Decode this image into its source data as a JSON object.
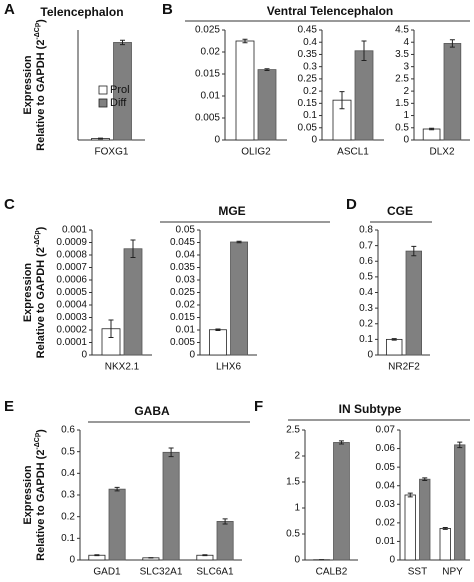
{
  "panels": [
    {
      "letter": "A",
      "title": "Telencephalon"
    },
    {
      "letter": "B",
      "title": "Ventral Telencephalon"
    },
    {
      "letter": "C",
      "title": "MGE"
    },
    {
      "letter": "D",
      "title": "CGE"
    },
    {
      "letter": "E",
      "title": "GABA"
    },
    {
      "letter": "F",
      "title": "IN Subtype"
    }
  ],
  "chart_data": [
    {
      "type": "bar",
      "categories": [
        "FOXG1"
      ],
      "ylim": [
        0,
        0.15
      ],
      "legend": true,
      "ylabel": {
        "line1": "Expression",
        "line2": "Relative to GAPDH (2",
        "sup": "-ΔCp",
        "close": ")"
      },
      "series": [
        {
          "name": "Prol",
          "color": "#ffffff",
          "values": [
            0.002
          ],
          "errors": [
            0.0005
          ]
        },
        {
          "name": "Diff",
          "color": "#808080",
          "values": [
            0.133
          ],
          "errors": [
            0.003
          ]
        }
      ]
    },
    {
      "type": "bar",
      "categories": [
        "OLIG2"
      ],
      "ylim": [
        0,
        0.025
      ],
      "yticks": [
        0,
        0.005,
        0.01,
        0.015,
        0.02,
        0.025
      ],
      "series": [
        {
          "color": "#ffffff",
          "values": [
            0.0225
          ],
          "errors": [
            0.0004
          ]
        },
        {
          "color": "#808080",
          "values": [
            0.016
          ],
          "errors": [
            0.0002
          ]
        }
      ]
    },
    {
      "type": "bar",
      "categories": [
        "ASCL1"
      ],
      "ylim": [
        0,
        0.45
      ],
      "yticks": [
        0,
        0.05,
        0.1,
        0.15,
        0.2,
        0.25,
        0.3,
        0.35,
        0.4,
        0.45
      ],
      "series": [
        {
          "color": "#ffffff",
          "values": [
            0.163
          ],
          "errors": [
            0.035
          ]
        },
        {
          "color": "#808080",
          "values": [
            0.365
          ],
          "errors": [
            0.04
          ]
        }
      ]
    },
    {
      "type": "bar",
      "categories": [
        "DLX2"
      ],
      "ylim": [
        0,
        4.5
      ],
      "yticks": [
        0,
        0.5,
        1,
        1.5,
        2,
        2.5,
        3,
        3.5,
        4,
        4.5
      ],
      "series": [
        {
          "color": "#ffffff",
          "values": [
            0.45
          ],
          "errors": [
            0.03
          ]
        },
        {
          "color": "#808080",
          "values": [
            3.95
          ],
          "errors": [
            0.15
          ]
        }
      ]
    },
    {
      "type": "bar",
      "categories": [
        "NKX2.1"
      ],
      "ylim": [
        0,
        0.001
      ],
      "yticks": [
        0,
        0.0001,
        0.0002,
        0.0003,
        0.0004,
        0.0005,
        0.0006,
        0.0007,
        0.0008,
        0.0009,
        0.001
      ],
      "ylabel": {
        "line1": "Expression",
        "line2": "Relative to GAPDH (2",
        "sup": "-ΔCp",
        "close": ")"
      },
      "series": [
        {
          "color": "#ffffff",
          "values": [
            0.00021
          ],
          "errors": [
            7e-05
          ]
        },
        {
          "color": "#808080",
          "values": [
            0.00085
          ],
          "errors": [
            7e-05
          ]
        }
      ]
    },
    {
      "type": "bar",
      "categories": [
        "LHX6"
      ],
      "ylim": [
        0,
        0.05
      ],
      "yticks": [
        0,
        0.005,
        0.01,
        0.015,
        0.02,
        0.025,
        0.03,
        0.035,
        0.04,
        0.045,
        0.05
      ],
      "series": [
        {
          "color": "#ffffff",
          "values": [
            0.0101
          ],
          "errors": [
            0.0003
          ]
        },
        {
          "color": "#808080",
          "values": [
            0.0452
          ],
          "errors": [
            0.0003
          ]
        }
      ]
    },
    {
      "type": "bar",
      "categories": [
        "NR2F2"
      ],
      "ylim": [
        0,
        0.8
      ],
      "yticks": [
        0,
        0.1,
        0.2,
        0.3,
        0.4,
        0.5,
        0.6,
        0.7,
        0.8
      ],
      "series": [
        {
          "color": "#ffffff",
          "values": [
            0.1
          ],
          "errors": [
            0.005
          ]
        },
        {
          "color": "#808080",
          "values": [
            0.665
          ],
          "errors": [
            0.03
          ]
        }
      ]
    },
    {
      "type": "bar",
      "categories": [
        "GAD1",
        "SLC32A1",
        "SLC6A1"
      ],
      "ylim": [
        0,
        0.6
      ],
      "yticks": [
        0,
        0.1,
        0.2,
        0.3,
        0.4,
        0.5,
        0.6
      ],
      "ylabel": {
        "line1": "Expression",
        "line2": "Relative to GAPDH (2",
        "sup": "-ΔCp",
        "close": ")"
      },
      "series": [
        {
          "color": "#ffffff",
          "values": [
            0.022,
            0.01,
            0.022
          ],
          "errors": [
            0.002,
            0.001,
            0.002
          ]
        },
        {
          "color": "#808080",
          "values": [
            0.327,
            0.497,
            0.178
          ],
          "errors": [
            0.008,
            0.02,
            0.012
          ]
        }
      ]
    },
    {
      "type": "bar",
      "categories": [
        "CALB2"
      ],
      "ylim": [
        0,
        2.5
      ],
      "yticks": [
        0,
        0.5,
        1,
        1.5,
        2,
        2.5
      ],
      "series": [
        {
          "color": "#ffffff",
          "values": [
            0.005
          ],
          "errors": [
            0.002
          ]
        },
        {
          "color": "#808080",
          "values": [
            2.26
          ],
          "errors": [
            0.03
          ]
        }
      ]
    },
    {
      "type": "bar",
      "categories": [
        "SST",
        "NPY"
      ],
      "ylim": [
        0,
        0.07
      ],
      "yticks": [
        0,
        0.01,
        0.02,
        0.03,
        0.04,
        0.05,
        0.06,
        0.07
      ],
      "series": [
        {
          "color": "#ffffff",
          "values": [
            0.035,
            0.017
          ],
          "errors": [
            0.001,
            0.0005
          ]
        },
        {
          "color": "#808080",
          "values": [
            0.0435,
            0.062
          ],
          "errors": [
            0.0007,
            0.0015
          ]
        }
      ]
    }
  ]
}
